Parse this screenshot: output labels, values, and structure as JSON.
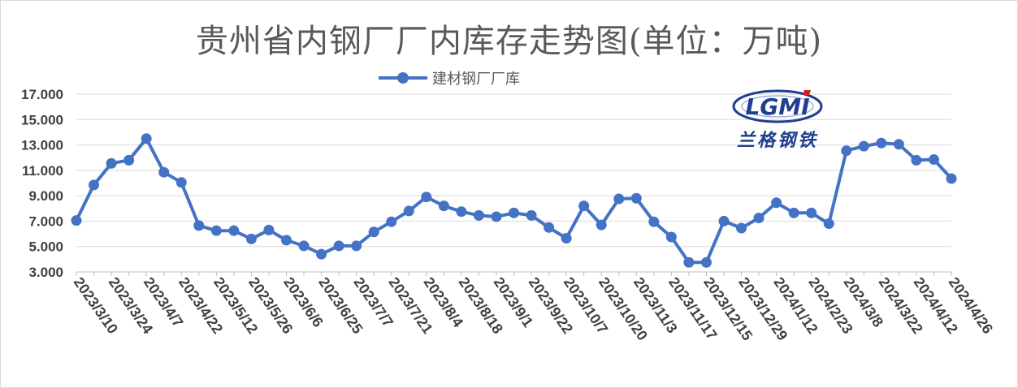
{
  "chart_data": {
    "type": "line",
    "title": "贵州省内钢厂厂内库存走势图(单位：万吨)",
    "xlabel": "",
    "ylabel": "",
    "ylim": [
      3.0,
      17.0
    ],
    "yticks": [
      "3.000",
      "5.000",
      "7.000",
      "9.000",
      "11.000",
      "13.000",
      "15.000",
      "17.000"
    ],
    "grid": true,
    "legend_position": "top-center",
    "x_tick_labels": [
      "2023/3/10",
      "2023/3/24",
      "2023/4/7",
      "2023/4/22",
      "2023/5/12",
      "2023/5/26",
      "2023/6/6",
      "2023/6/25",
      "2023/7/7",
      "2023/7/21",
      "2023/8/4",
      "2023/8/18",
      "2023/9/1",
      "2023/9/22",
      "2023/10/7",
      "2023/10/20",
      "2023/11/3",
      "2023/11/17",
      "2023/12/15",
      "2023/12/29",
      "2024/1/12",
      "2024/2/23",
      "2024/3/8",
      "2024/3/22",
      "2024/4/12",
      "2024/4/26"
    ],
    "series": [
      {
        "name": "建材钢厂厂库",
        "color": "#4472c4",
        "values": [
          7.05,
          9.85,
          11.55,
          11.8,
          13.5,
          10.85,
          10.05,
          6.65,
          6.25,
          6.25,
          5.6,
          6.3,
          5.5,
          5.05,
          4.4,
          5.05,
          5.05,
          6.15,
          6.95,
          7.8,
          8.9,
          8.2,
          7.75,
          7.45,
          7.35,
          7.65,
          7.45,
          6.5,
          5.65,
          8.2,
          6.7,
          8.75,
          8.8,
          6.95,
          5.75,
          3.75,
          3.75,
          7.0,
          6.45,
          7.25,
          8.45,
          7.65,
          7.65,
          6.8,
          12.55,
          12.9,
          13.15,
          13.05,
          11.8,
          11.85,
          10.35
        ]
      }
    ]
  },
  "logo": {
    "mark": "LGMI",
    "text": "兰格钢铁"
  }
}
